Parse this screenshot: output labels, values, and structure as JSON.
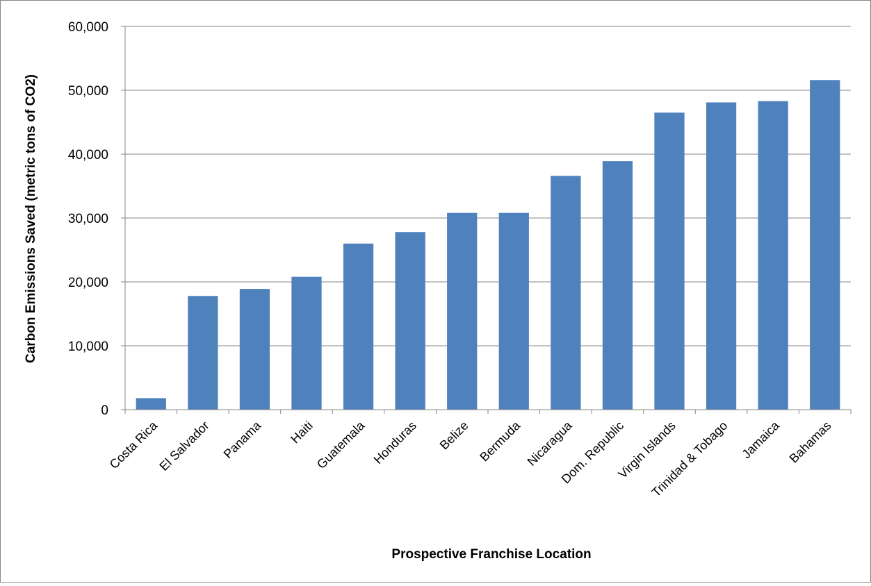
{
  "chart_data": {
    "type": "bar",
    "title": "",
    "xlabel": "Prospective Franchise Location",
    "ylabel": "Carbon Emissions  Saved (metric tons of CO2)",
    "categories": [
      "Costa Rica",
      "El Salvador",
      "Panama",
      "Haiti",
      "Guatemala",
      "Honduras",
      "Belize",
      "Bermuda",
      "Nicaragua",
      "Dom. Republic",
      "Virgin Islands",
      "Trinidad & Tobago",
      "Jamaica",
      "Bahamas"
    ],
    "series": [
      {
        "values": [
          1800,
          17800,
          18900,
          20800,
          26000,
          27800,
          30800,
          30800,
          36600,
          38900,
          46500,
          48100,
          48300,
          51600
        ],
        "color": "#4f81bd"
      }
    ],
    "ylim": [
      0,
      60000
    ],
    "yticks": [
      0,
      10000,
      20000,
      30000,
      40000,
      50000,
      60000
    ],
    "ytick_labels": [
      "0",
      "10,000",
      "20,000",
      "30,000",
      "40,000",
      "50,000",
      "60,000"
    ],
    "grid": true,
    "legend": "none"
  }
}
